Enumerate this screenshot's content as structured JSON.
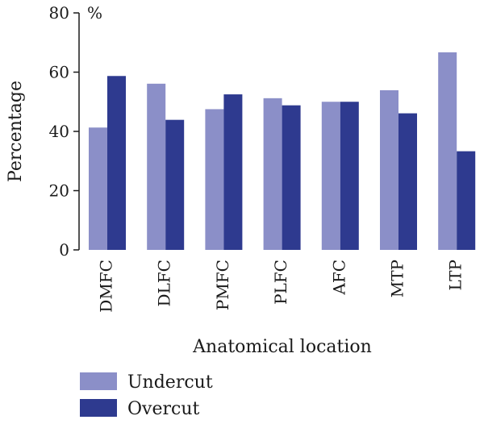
{
  "chart_data": {
    "type": "bar",
    "ylabel": "Percentage",
    "xlabel": "Anatomical location",
    "unit": "%",
    "ylim": [
      0,
      80
    ],
    "yticks": [
      "0",
      "20",
      "40",
      "60",
      "80"
    ],
    "categories": [
      "DMFC",
      "DLFC",
      "PMFC",
      "PLFC",
      "AFC",
      "MTP",
      "LTP"
    ],
    "series": [
      {
        "name": "Undercut",
        "color": "#8b8fc8",
        "values": [
          41.3,
          56.1,
          47.5,
          51.2,
          50.0,
          53.9,
          66.7
        ]
      },
      {
        "name": "Overcut",
        "color": "#2e3a8f",
        "values": [
          58.7,
          43.9,
          52.5,
          48.8,
          50.0,
          46.1,
          33.3
        ]
      }
    ],
    "grid": false,
    "legend": "bottom-left"
  }
}
